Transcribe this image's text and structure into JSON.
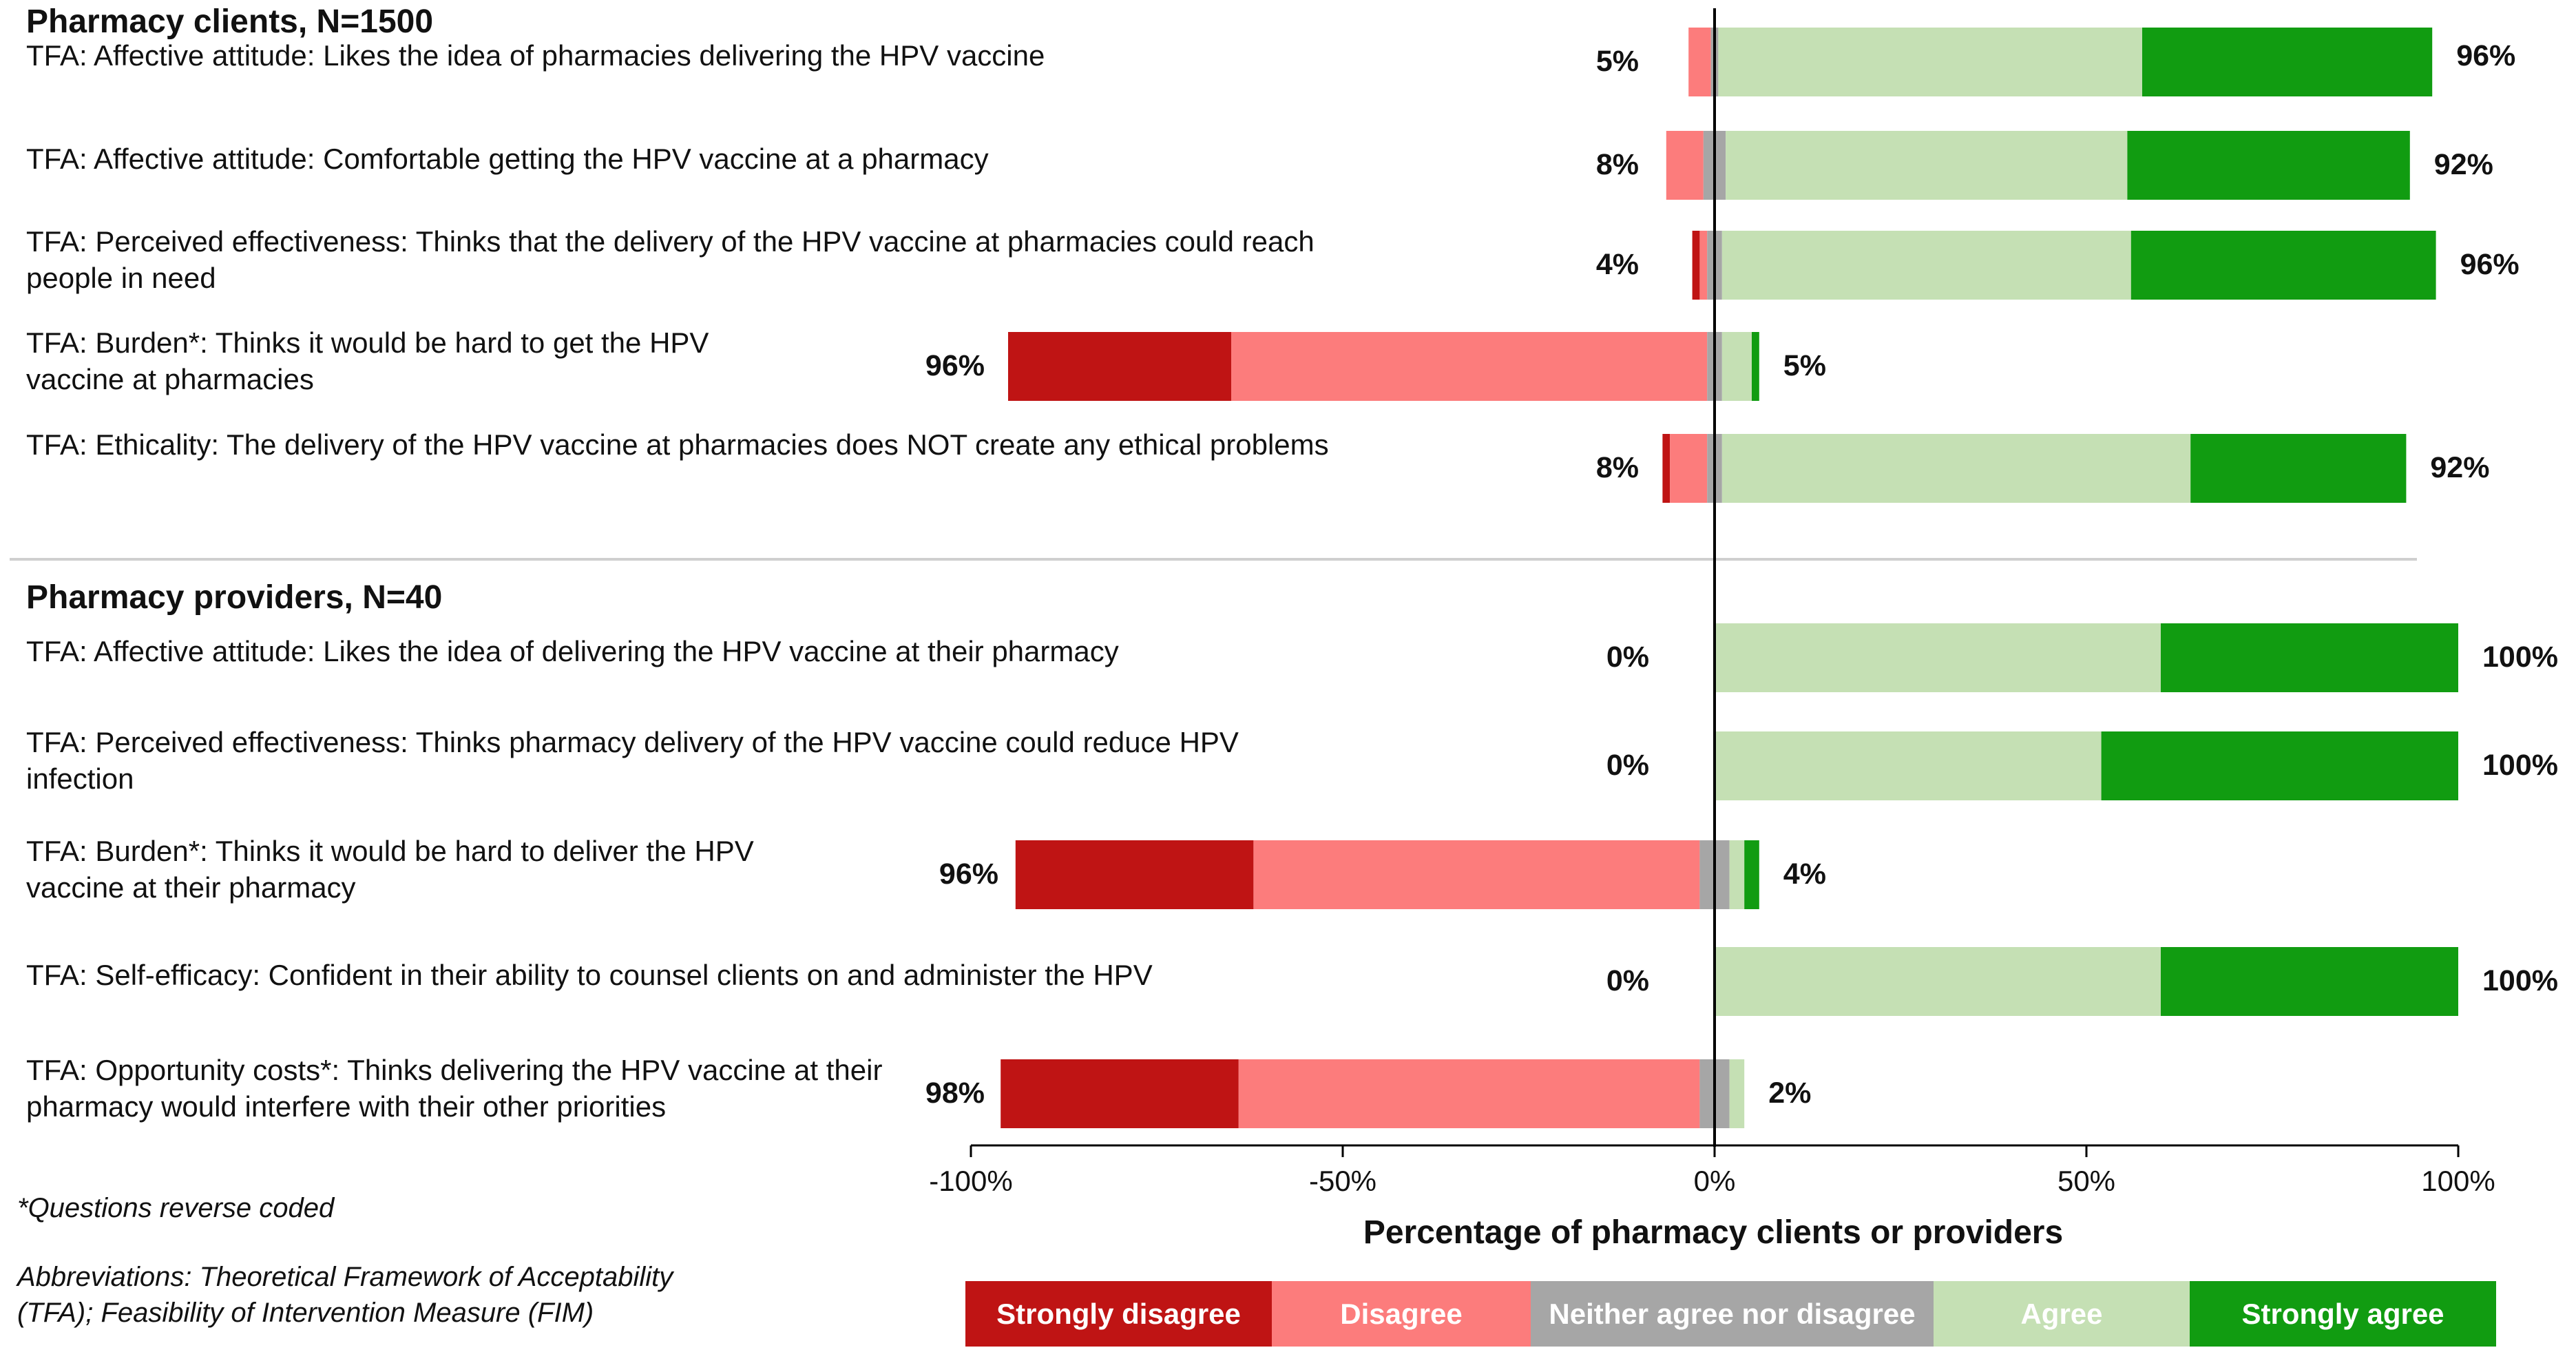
{
  "chart_data": {
    "type": "bar",
    "subtype": "diverging-stacked-horizontal",
    "xlabel": "Percentage of pharmacy clients or providers",
    "xlim": [
      -100,
      100
    ],
    "x_ticks": [
      -100,
      -50,
      0,
      50,
      100
    ],
    "x_tick_labels": [
      "-100%",
      "-50%",
      "0%",
      "50%",
      "100%"
    ],
    "grid": false,
    "legend_position": "bottom",
    "series": [
      {
        "key": "strongly_disagree",
        "name": "Strongly disagree",
        "color": "#bf1414",
        "text_color": "#ffffff"
      },
      {
        "key": "disagree",
        "name": "Disagree",
        "color": "#fc7c7c",
        "text_color": "#ffffff"
      },
      {
        "key": "neither",
        "name": "Neither agree nor disagree",
        "color": "#a6a6a6",
        "text_color": "#ffffff"
      },
      {
        "key": "agree",
        "name": "Agree",
        "color": "#c5e0b4",
        "text_color": "#ffffff"
      },
      {
        "key": "strongly_agree",
        "name": "Strongly agree",
        "color": "#119c11",
        "text_color": "#ffffff"
      }
    ],
    "groups": [
      {
        "title": "Pharmacy clients, N=1500",
        "rows": [
          {
            "label": "TFA: Affective attitude: Likes the idea of pharmacies delivering the HPV vaccine",
            "values": {
              "strongly_disagree": 0,
              "disagree": 3,
              "neither": 1,
              "agree": 57,
              "strongly_agree": 39
            },
            "neg_label": "5%",
            "pos_label": "96%"
          },
          {
            "label": "TFA: Affective attitude: Comfortable getting the HPV vaccine at a pharmacy",
            "values": {
              "strongly_disagree": 0,
              "disagree": 5,
              "neither": 3,
              "agree": 54,
              "strongly_agree": 38
            },
            "neg_label": "8%",
            "pos_label": "92%"
          },
          {
            "label": "TFA: Perceived effectiveness: Thinks that the delivery of the HPV vaccine at pharmacies could reach people in need",
            "values": {
              "strongly_disagree": 1,
              "disagree": 1,
              "neither": 2,
              "agree": 55,
              "strongly_agree": 41
            },
            "neg_label": "4%",
            "pos_label": "96%"
          },
          {
            "label": "TFA: Burden*: Thinks it would be hard to get the HPV vaccine at pharmacies",
            "values": {
              "strongly_disagree": 30,
              "disagree": 64,
              "neither": 2,
              "agree": 4,
              "strongly_agree": 1
            },
            "neg_label": "96%",
            "pos_label": "5%"
          },
          {
            "label": "TFA: Ethicality: The delivery of the HPV vaccine at pharmacies does NOT create any ethical problems",
            "values": {
              "strongly_disagree": 1,
              "disagree": 5,
              "neither": 2,
              "agree": 63,
              "strongly_agree": 29
            },
            "neg_label": "8%",
            "pos_label": "92%"
          }
        ]
      },
      {
        "title": "Pharmacy providers, N=40",
        "rows": [
          {
            "label": "TFA: Affective attitude: Likes the idea of delivering the HPV vaccine at their pharmacy",
            "values": {
              "strongly_disagree": 0,
              "disagree": 0,
              "neither": 0,
              "agree": 60,
              "strongly_agree": 40
            },
            "neg_label": "0%",
            "pos_label": "100%"
          },
          {
            "label": "TFA: Perceived effectiveness: Thinks pharmacy delivery of the HPV vaccine could reduce HPV infection",
            "values": {
              "strongly_disagree": 0,
              "disagree": 0,
              "neither": 0,
              "agree": 52,
              "strongly_agree": 48
            },
            "neg_label": "0%",
            "pos_label": "100%"
          },
          {
            "label": "TFA: Burden*: Thinks it would be hard to deliver the HPV vaccine at their pharmacy",
            "values": {
              "strongly_disagree": 32,
              "disagree": 60,
              "neither": 4,
              "agree": 2,
              "strongly_agree": 2
            },
            "neg_label": "96%",
            "pos_label": "4%"
          },
          {
            "label": "TFA: Self-efficacy: Confident in their ability to counsel clients on and administer the HPV",
            "values": {
              "strongly_disagree": 0,
              "disagree": 0,
              "neither": 0,
              "agree": 60,
              "strongly_agree": 40
            },
            "neg_label": "0%",
            "pos_label": "100%"
          },
          {
            "label": "TFA: Opportunity costs*: Thinks delivering the HPV vaccine at their pharmacy would interfere with their other priorities",
            "values": {
              "strongly_disagree": 32,
              "disagree": 62,
              "neither": 4,
              "agree": 2,
              "strongly_agree": 0
            },
            "neg_label": "98%",
            "pos_label": "2%"
          }
        ]
      }
    ]
  },
  "footnote": "*Questions reverse coded",
  "abbreviations": "Abbreviations: Theoretical Framework of Acceptability (TFA); Feasibility of Intervention Measure (FIM)"
}
